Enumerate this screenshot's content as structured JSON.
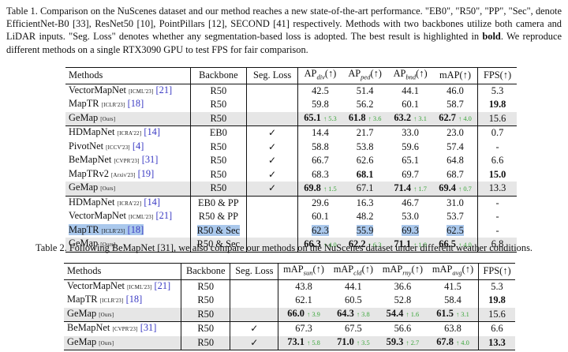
{
  "table1": {
    "caption": "Table 1. Comparison on the NuScenes dataset and our method reaches a new state-of-the-art performance. \"EB0\", \"R50\", \"PP\", \"Sec\", denote EfficientNet-B0 [33], ResNet50 [10], PointPillars [12], SECOND [41] respectively. Methods with two backbones utilize both camera and LiDAR inputs. \"Seg. Loss\" denotes whether any segmentation-based loss is adopted. The best result is highlighted in bold. We reproduce different methods on a single RTX3090 GPU to test FPS for fair comparison.",
    "headers": [
      "Methods",
      "Backbone",
      "Seg. Loss",
      "AP",
      "AP",
      "AP",
      "mAP(↑)",
      "FPS(↑)"
    ],
    "ap_subs": [
      "div",
      "ped",
      "bnd"
    ],
    "arrow": "(↑)",
    "groups": [
      [
        {
          "name": "VectorMapNet",
          "venue": "[ICML'23]",
          "ref": "[21]",
          "backbone": "R50",
          "seg": "",
          "ap_div": "42.5",
          "ap_ped": "51.4",
          "ap_bnd": "44.1",
          "map": "46.0",
          "fps": "5.3"
        },
        {
          "name": "MapTR",
          "venue": "[ICLR'23]",
          "ref": "[18]",
          "backbone": "R50",
          "seg": "",
          "ap_div": "59.8",
          "ap_ped": "56.2",
          "ap_bnd": "60.1",
          "map": "58.7",
          "fps": "19.8"
        },
        {
          "name": "GeMap",
          "venue": "[Ours]",
          "ref": "",
          "backbone": "R50",
          "seg": "",
          "ap_div": "65.1",
          "ap_div_up": "↑ 5.3",
          "ap_ped": "61.8",
          "ap_ped_up": "↑ 3.6",
          "ap_bnd": "63.2",
          "ap_bnd_up": "↑ 3.1",
          "map": "62.7",
          "map_up": "↑ 4.0",
          "fps": "15.6"
        }
      ],
      [
        {
          "name": "HDMapNet",
          "venue": "[ICRA'22]",
          "ref": "[14]",
          "backbone": "EB0",
          "seg": "✓",
          "ap_div": "14.4",
          "ap_ped": "21.7",
          "ap_bnd": "33.0",
          "map": "23.0",
          "fps": "0.7"
        },
        {
          "name": "PivotNet",
          "venue": "[ICCV'23]",
          "ref": "[4]",
          "backbone": "R50",
          "seg": "✓",
          "ap_div": "58.8",
          "ap_ped": "53.8",
          "ap_bnd": "59.6",
          "map": "57.4",
          "fps": "-"
        },
        {
          "name": "BeMapNet",
          "venue": "[CVPR'23]",
          "ref": "[31]",
          "backbone": "R50",
          "seg": "✓",
          "ap_div": "66.7",
          "ap_ped": "62.6",
          "ap_bnd": "65.1",
          "map": "64.8",
          "fps": "6.6"
        },
        {
          "name": "MapTRv2",
          "venue": "[Arxiv'23]",
          "ref": "[19]",
          "backbone": "R50",
          "seg": "✓",
          "ap_div": "68.3",
          "ap_ped": "68.1",
          "ap_bnd": "69.7",
          "map": "68.7",
          "fps": "15.0"
        },
        {
          "name": "GeMap",
          "venue": "[Ours]",
          "ref": "",
          "backbone": "R50",
          "seg": "✓",
          "ap_div": "69.8",
          "ap_div_up": "↑ 1.5",
          "ap_ped": "67.1",
          "ap_bnd": "71.4",
          "ap_bnd_up": "↑ 1.7",
          "map": "69.4",
          "map_up": "↑ 0.7",
          "fps": "13.3"
        }
      ],
      [
        {
          "name": "HDMapNet",
          "venue": "[ICRA'22]",
          "ref": "[14]",
          "backbone": "EB0 & PP",
          "seg": "",
          "ap_div": "29.6",
          "ap_ped": "16.3",
          "ap_bnd": "46.7",
          "map": "31.0",
          "fps": "-"
        },
        {
          "name": "VectorMapNet",
          "venue": "[ICML'23]",
          "ref": "[21]",
          "backbone": "R50 & PP",
          "seg": "",
          "ap_div": "60.1",
          "ap_ped": "48.2",
          "ap_bnd": "53.0",
          "map": "53.7",
          "fps": "-"
        },
        {
          "name": "MapTR",
          "venue": "[ICLR'23]",
          "ref": "[18]",
          "backbone": "R50 & Sec",
          "seg": "",
          "ap_div": "62.3",
          "ap_ped": "55.9",
          "ap_bnd": "69.3",
          "map": "62.5",
          "fps": "-"
        },
        {
          "name": "GeMap",
          "venue": "[Ours]",
          "ref": "",
          "backbone": "R50 & Sec",
          "seg": "",
          "ap_div": "66.3",
          "ap_div_up": "↑ 4.0",
          "ap_ped": "62.2",
          "ap_ped_up": "↑ 6.3",
          "ap_bnd": "71.1",
          "ap_bnd_up": "↑ 1.8",
          "map": "66.5",
          "map_up": "↑ 4.0",
          "fps": "6.8"
        }
      ]
    ]
  },
  "table2": {
    "caption": "Table 2. Following BeMapNet [31], we also compare our methods on the NuScenes dataset under different weather conditions.",
    "headers": [
      "Methods",
      "Backbone",
      "Seg. Loss",
      "mAP",
      "mAP",
      "mAP",
      "mAP",
      "FPS(↑)"
    ],
    "map_subs": [
      "sun",
      "cld",
      "rny",
      "avg"
    ],
    "arrow": "(↑)",
    "groups": [
      [
        {
          "name": "VectorMapNet",
          "venue": "[ICML'23]",
          "ref": "[21]",
          "backbone": "R50",
          "seg": "",
          "sun": "43.8",
          "cld": "44.1",
          "rny": "36.6",
          "avg": "41.5",
          "fps": "5.3"
        },
        {
          "name": "MapTR",
          "venue": "[ICLR'23]",
          "ref": "[18]",
          "backbone": "R50",
          "seg": "",
          "sun": "62.1",
          "cld": "60.5",
          "rny": "52.8",
          "avg": "58.4",
          "fps": "19.8"
        },
        {
          "name": "GeMap",
          "venue": "[Ours]",
          "ref": "",
          "backbone": "R50",
          "seg": "",
          "sun": "66.0",
          "sun_up": "↑ 3.9",
          "cld": "64.3",
          "cld_up": "↑ 3.8",
          "rny": "54.4",
          "rny_up": "↑ 1.6",
          "avg": "61.5",
          "avg_up": "↑ 3.1",
          "fps": "15.6"
        }
      ],
      [
        {
          "name": "BeMapNet",
          "venue": "[CVPR'23]",
          "ref": "[31]",
          "backbone": "R50",
          "seg": "✓",
          "sun": "67.3",
          "cld": "67.5",
          "rny": "56.6",
          "avg": "63.8",
          "fps": "6.6"
        },
        {
          "name": "GeMap",
          "venue": "[Ours]",
          "ref": "",
          "backbone": "R50",
          "seg": "✓",
          "sun": "73.1",
          "sun_up": "↑ 5.8",
          "cld": "71.0",
          "cld_up": "↑ 3.5",
          "rny": "59.3",
          "rny_up": "↑ 2.7",
          "avg": "67.8",
          "avg_up": "↑ 4.0",
          "fps": "13.3"
        }
      ]
    ]
  }
}
